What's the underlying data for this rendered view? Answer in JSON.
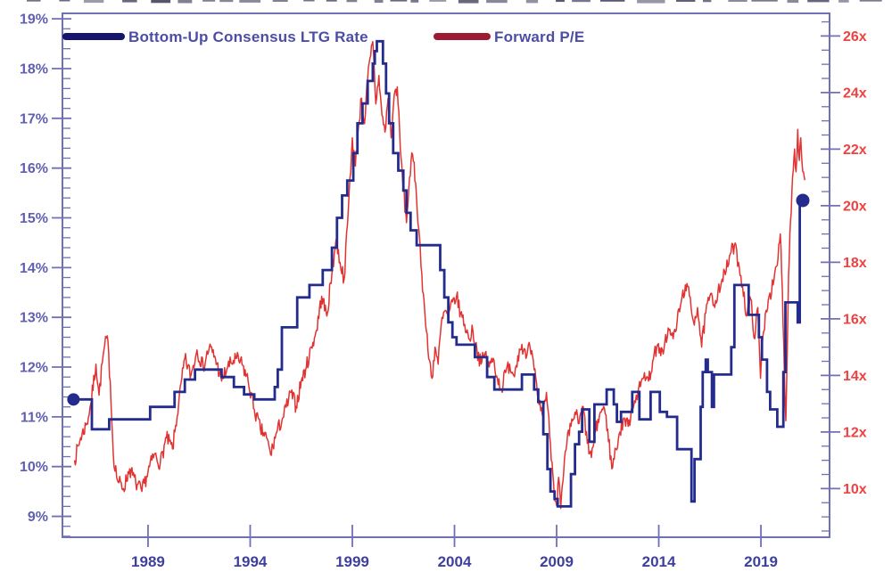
{
  "figure": {
    "background": "#ffffff",
    "frame_color": "#7070b5",
    "cropped_text_row_at_top": true
  },
  "legend": {
    "items": [
      {
        "label": "Bottom-Up Consensus LTG Rate",
        "swatch_color": "#15156e"
      },
      {
        "label": "Forward P/E",
        "swatch_color": "#9c1b32"
      }
    ]
  },
  "chart_data": {
    "type": "line",
    "title": "",
    "x_axis": {
      "tick_labels": [
        "1989",
        "1994",
        "1999",
        "2004",
        "2009",
        "2014",
        "2019"
      ],
      "tick_values": [
        1989,
        1994,
        1999,
        2004,
        2009,
        2014,
        2019
      ],
      "range_years": [
        1984.81,
        2022.36
      ]
    },
    "left_axis": {
      "tick_labels": [
        "9%",
        "10%",
        "11%",
        "12%",
        "13%",
        "14%",
        "15%",
        "16%",
        "17%",
        "18%",
        "19%"
      ],
      "tick_values": [
        9,
        10,
        11,
        12,
        13,
        14,
        15,
        16,
        17,
        18,
        19
      ],
      "minor_step": 0.2,
      "range": [
        8.58,
        19.11
      ],
      "label_color": "#6060b0"
    },
    "right_axis": {
      "tick_labels": [
        "10x",
        "12x",
        "14x",
        "16x",
        "18x",
        "20x",
        "22x",
        "24x",
        "26x"
      ],
      "tick_values": [
        10,
        12,
        14,
        16,
        18,
        20,
        22,
        24,
        26
      ],
      "minor_step": 0.5,
      "range": [
        8.28,
        26.8
      ],
      "label_color": "#ee4242"
    },
    "series": [
      {
        "name": "Bottom-Up Consensus LTG Rate",
        "axis": "left",
        "unit": "%",
        "line_style": "step",
        "color": "#232b8d",
        "endpoint_markers": true,
        "points": [
          [
            1985.35,
            11.35
          ],
          [
            1986.25,
            10.75
          ],
          [
            1987.1,
            10.95
          ],
          [
            1989.1,
            11.2
          ],
          [
            1990.3,
            11.5
          ],
          [
            1990.8,
            11.75
          ],
          [
            1991.3,
            11.95
          ],
          [
            1992.6,
            11.8
          ],
          [
            1993.2,
            11.6
          ],
          [
            1993.7,
            11.45
          ],
          [
            1994.2,
            11.35
          ],
          [
            1995.2,
            11.6
          ],
          [
            1995.35,
            11.95
          ],
          [
            1995.55,
            12.8
          ],
          [
            1996.3,
            13.4
          ],
          [
            1996.9,
            13.65
          ],
          [
            1997.55,
            13.95
          ],
          [
            1998.0,
            14.4
          ],
          [
            1998.25,
            15.0
          ],
          [
            1998.5,
            15.45
          ],
          [
            1998.75,
            15.75
          ],
          [
            1999.05,
            16.3
          ],
          [
            1999.25,
            16.9
          ],
          [
            1999.5,
            17.3
          ],
          [
            1999.75,
            17.75
          ],
          [
            2000.0,
            18.1
          ],
          [
            2000.1,
            18.35
          ],
          [
            2000.2,
            18.55
          ],
          [
            2000.5,
            18.1
          ],
          [
            2000.65,
            17.5
          ],
          [
            2000.8,
            16.9
          ],
          [
            2001.0,
            16.3
          ],
          [
            2001.25,
            15.95
          ],
          [
            2001.5,
            15.55
          ],
          [
            2001.65,
            15.1
          ],
          [
            2001.85,
            14.75
          ],
          [
            2002.15,
            14.45
          ],
          [
            2003.3,
            13.95
          ],
          [
            2003.5,
            13.4
          ],
          [
            2003.7,
            12.9
          ],
          [
            2003.9,
            12.6
          ],
          [
            2004.1,
            12.45
          ],
          [
            2005.0,
            12.2
          ],
          [
            2005.6,
            11.8
          ],
          [
            2005.95,
            11.55
          ],
          [
            2007.3,
            11.85
          ],
          [
            2007.9,
            11.55
          ],
          [
            2008.1,
            11.3
          ],
          [
            2008.35,
            10.65
          ],
          [
            2008.55,
            9.95
          ],
          [
            2008.7,
            9.5
          ],
          [
            2008.9,
            9.35
          ],
          [
            2009.05,
            9.2
          ],
          [
            2009.7,
            9.85
          ],
          [
            2009.9,
            10.45
          ],
          [
            2010.1,
            10.7
          ],
          [
            2010.25,
            11.15
          ],
          [
            2010.6,
            10.5
          ],
          [
            2010.85,
            11.25
          ],
          [
            2011.45,
            11.55
          ],
          [
            2011.8,
            11.25
          ],
          [
            2011.95,
            10.9
          ],
          [
            2012.15,
            11.1
          ],
          [
            2012.7,
            11.5
          ],
          [
            2013.05,
            10.95
          ],
          [
            2013.6,
            11.5
          ],
          [
            2014.05,
            11.1
          ],
          [
            2014.4,
            11.0
          ],
          [
            2014.9,
            10.35
          ],
          [
            2015.6,
            9.3
          ],
          [
            2015.75,
            10.15
          ],
          [
            2016.05,
            11.2
          ],
          [
            2016.15,
            11.9
          ],
          [
            2016.3,
            12.15
          ],
          [
            2016.4,
            11.9
          ],
          [
            2016.6,
            11.2
          ],
          [
            2016.7,
            11.85
          ],
          [
            2017.55,
            12.4
          ],
          [
            2017.7,
            13.65
          ],
          [
            2018.4,
            13.05
          ],
          [
            2018.9,
            12.6
          ],
          [
            2019.05,
            12.15
          ],
          [
            2019.3,
            11.5
          ],
          [
            2019.45,
            11.15
          ],
          [
            2019.8,
            10.8
          ],
          [
            2020.1,
            11.9
          ],
          [
            2020.2,
            13.3
          ],
          [
            2020.8,
            12.9
          ],
          [
            2020.9,
            15.35
          ],
          [
            2021.05,
            15.35
          ]
        ]
      },
      {
        "name": "Forward P/E",
        "axis": "right",
        "unit": "x",
        "line_style": "noisy",
        "color": "#e23333",
        "noise_amplitude": 0.27,
        "noise_seed": 7,
        "points": [
          [
            1985.4,
            11.0
          ],
          [
            1985.7,
            11.8
          ],
          [
            1986.0,
            12.3
          ],
          [
            1986.2,
            13.0
          ],
          [
            1986.45,
            14.4
          ],
          [
            1986.6,
            13.3
          ],
          [
            1986.8,
            14.7
          ],
          [
            1987.0,
            15.4
          ],
          [
            1987.15,
            13.8
          ],
          [
            1987.3,
            11.2
          ],
          [
            1987.5,
            10.3
          ],
          [
            1987.8,
            10.0
          ],
          [
            1988.1,
            10.7
          ],
          [
            1988.4,
            10.2
          ],
          [
            1988.7,
            9.9
          ],
          [
            1989.0,
            10.6
          ],
          [
            1989.3,
            11.2
          ],
          [
            1989.6,
            10.9
          ],
          [
            1989.9,
            11.8
          ],
          [
            1990.2,
            11.4
          ],
          [
            1990.5,
            13.0
          ],
          [
            1990.8,
            14.6
          ],
          [
            1991.1,
            14.0
          ],
          [
            1991.4,
            14.9
          ],
          [
            1991.7,
            14.3
          ],
          [
            1992.0,
            15.0
          ],
          [
            1992.3,
            14.6
          ],
          [
            1992.6,
            13.8
          ],
          [
            1992.9,
            14.3
          ],
          [
            1993.3,
            14.6
          ],
          [
            1993.6,
            14.4
          ],
          [
            1993.9,
            13.8
          ],
          [
            1994.2,
            12.8
          ],
          [
            1994.5,
            12.1
          ],
          [
            1994.8,
            11.8
          ],
          [
            1995.0,
            11.2
          ],
          [
            1995.3,
            12.0
          ],
          [
            1995.6,
            12.5
          ],
          [
            1996.0,
            13.4
          ],
          [
            1996.25,
            12.9
          ],
          [
            1996.5,
            13.8
          ],
          [
            1996.75,
            14.3
          ],
          [
            1997.0,
            15.0
          ],
          [
            1997.25,
            15.6
          ],
          [
            1997.5,
            16.8
          ],
          [
            1997.75,
            16.1
          ],
          [
            1998.0,
            17.6
          ],
          [
            1998.2,
            18.8
          ],
          [
            1998.4,
            18.0
          ],
          [
            1998.6,
            17.4
          ],
          [
            1998.8,
            19.8
          ],
          [
            1999.0,
            22.4
          ],
          [
            1999.15,
            21.4
          ],
          [
            1999.3,
            22.8
          ],
          [
            1999.45,
            23.8
          ],
          [
            1999.6,
            22.9
          ],
          [
            1999.75,
            24.5
          ],
          [
            1999.9,
            25.3
          ],
          [
            2000.0,
            25.8
          ],
          [
            2000.15,
            23.6
          ],
          [
            2000.3,
            24.6
          ],
          [
            2000.45,
            23.2
          ],
          [
            2000.6,
            22.6
          ],
          [
            2000.75,
            23.8
          ],
          [
            2000.9,
            22.4
          ],
          [
            2001.05,
            23.9
          ],
          [
            2001.2,
            24.2
          ],
          [
            2001.35,
            22.0
          ],
          [
            2001.5,
            20.6
          ],
          [
            2001.65,
            19.4
          ],
          [
            2001.8,
            21.0
          ],
          [
            2001.95,
            21.8
          ],
          [
            2002.1,
            20.8
          ],
          [
            2002.25,
            19.2
          ],
          [
            2002.4,
            17.6
          ],
          [
            2002.55,
            16.2
          ],
          [
            2002.7,
            14.9
          ],
          [
            2002.9,
            13.9
          ],
          [
            2003.05,
            15.0
          ],
          [
            2003.2,
            14.4
          ],
          [
            2003.35,
            15.8
          ],
          [
            2003.55,
            16.3
          ],
          [
            2003.7,
            16.0
          ],
          [
            2003.9,
            16.6
          ],
          [
            2004.1,
            16.8
          ],
          [
            2004.3,
            16.2
          ],
          [
            2004.5,
            15.8
          ],
          [
            2004.7,
            15.3
          ],
          [
            2004.9,
            15.6
          ],
          [
            2005.1,
            14.9
          ],
          [
            2005.3,
            14.4
          ],
          [
            2005.5,
            14.8
          ],
          [
            2005.7,
            14.3
          ],
          [
            2005.9,
            14.6
          ],
          [
            2006.1,
            13.9
          ],
          [
            2006.3,
            13.5
          ],
          [
            2006.5,
            14.1
          ],
          [
            2006.7,
            14.4
          ],
          [
            2006.9,
            14.0
          ],
          [
            2007.1,
            14.7
          ],
          [
            2007.3,
            15.1
          ],
          [
            2007.5,
            14.6
          ],
          [
            2007.7,
            15.0
          ],
          [
            2007.9,
            14.2
          ],
          [
            2008.1,
            13.2
          ],
          [
            2008.3,
            12.6
          ],
          [
            2008.5,
            13.4
          ],
          [
            2008.7,
            11.6
          ],
          [
            2008.85,
            10.2
          ],
          [
            2009.0,
            9.4
          ],
          [
            2009.1,
            10.4
          ],
          [
            2009.2,
            9.3
          ],
          [
            2009.35,
            10.6
          ],
          [
            2009.5,
            11.6
          ],
          [
            2009.7,
            12.2
          ],
          [
            2009.9,
            12.7
          ],
          [
            2010.1,
            12.3
          ],
          [
            2010.3,
            12.9
          ],
          [
            2010.5,
            11.6
          ],
          [
            2010.7,
            11.1
          ],
          [
            2010.9,
            12.0
          ],
          [
            2011.1,
            12.6
          ],
          [
            2011.3,
            12.9
          ],
          [
            2011.5,
            12.1
          ],
          [
            2011.7,
            10.7
          ],
          [
            2011.9,
            11.4
          ],
          [
            2012.1,
            12.0
          ],
          [
            2012.3,
            12.5
          ],
          [
            2012.5,
            12.2
          ],
          [
            2012.7,
            12.9
          ],
          [
            2012.9,
            13.3
          ],
          [
            2013.1,
            13.6
          ],
          [
            2013.3,
            14.1
          ],
          [
            2013.5,
            13.8
          ],
          [
            2013.7,
            14.5
          ],
          [
            2013.9,
            15.0
          ],
          [
            2014.1,
            14.7
          ],
          [
            2014.3,
            15.2
          ],
          [
            2014.5,
            15.6
          ],
          [
            2014.7,
            15.3
          ],
          [
            2014.9,
            15.9
          ],
          [
            2015.1,
            16.6
          ],
          [
            2015.3,
            17.2
          ],
          [
            2015.5,
            16.8
          ],
          [
            2015.7,
            15.9
          ],
          [
            2015.9,
            16.4
          ],
          [
            2016.1,
            15.0
          ],
          [
            2016.3,
            16.2
          ],
          [
            2016.5,
            16.8
          ],
          [
            2016.7,
            16.5
          ],
          [
            2016.9,
            17.0
          ],
          [
            2017.1,
            17.4
          ],
          [
            2017.3,
            17.7
          ],
          [
            2017.5,
            18.3
          ],
          [
            2017.7,
            18.6
          ],
          [
            2017.9,
            18.0
          ],
          [
            2018.1,
            17.2
          ],
          [
            2018.3,
            16.1
          ],
          [
            2018.5,
            16.7
          ],
          [
            2018.7,
            15.3
          ],
          [
            2018.85,
            16.4
          ],
          [
            2018.98,
            13.9
          ],
          [
            2019.1,
            15.4
          ],
          [
            2019.25,
            16.3
          ],
          [
            2019.4,
            16.8
          ],
          [
            2019.6,
            17.2
          ],
          [
            2019.8,
            17.9
          ],
          [
            2019.95,
            19.0
          ],
          [
            2020.05,
            17.0
          ],
          [
            2020.15,
            14.0
          ],
          [
            2020.22,
            12.4
          ],
          [
            2020.35,
            17.5
          ],
          [
            2020.45,
            19.5
          ],
          [
            2020.55,
            21.0
          ],
          [
            2020.65,
            22.0
          ],
          [
            2020.72,
            21.2
          ],
          [
            2020.8,
            22.7
          ],
          [
            2020.88,
            21.6
          ],
          [
            2020.95,
            22.4
          ],
          [
            2021.05,
            21.2
          ],
          [
            2021.15,
            20.9
          ]
        ]
      }
    ]
  }
}
